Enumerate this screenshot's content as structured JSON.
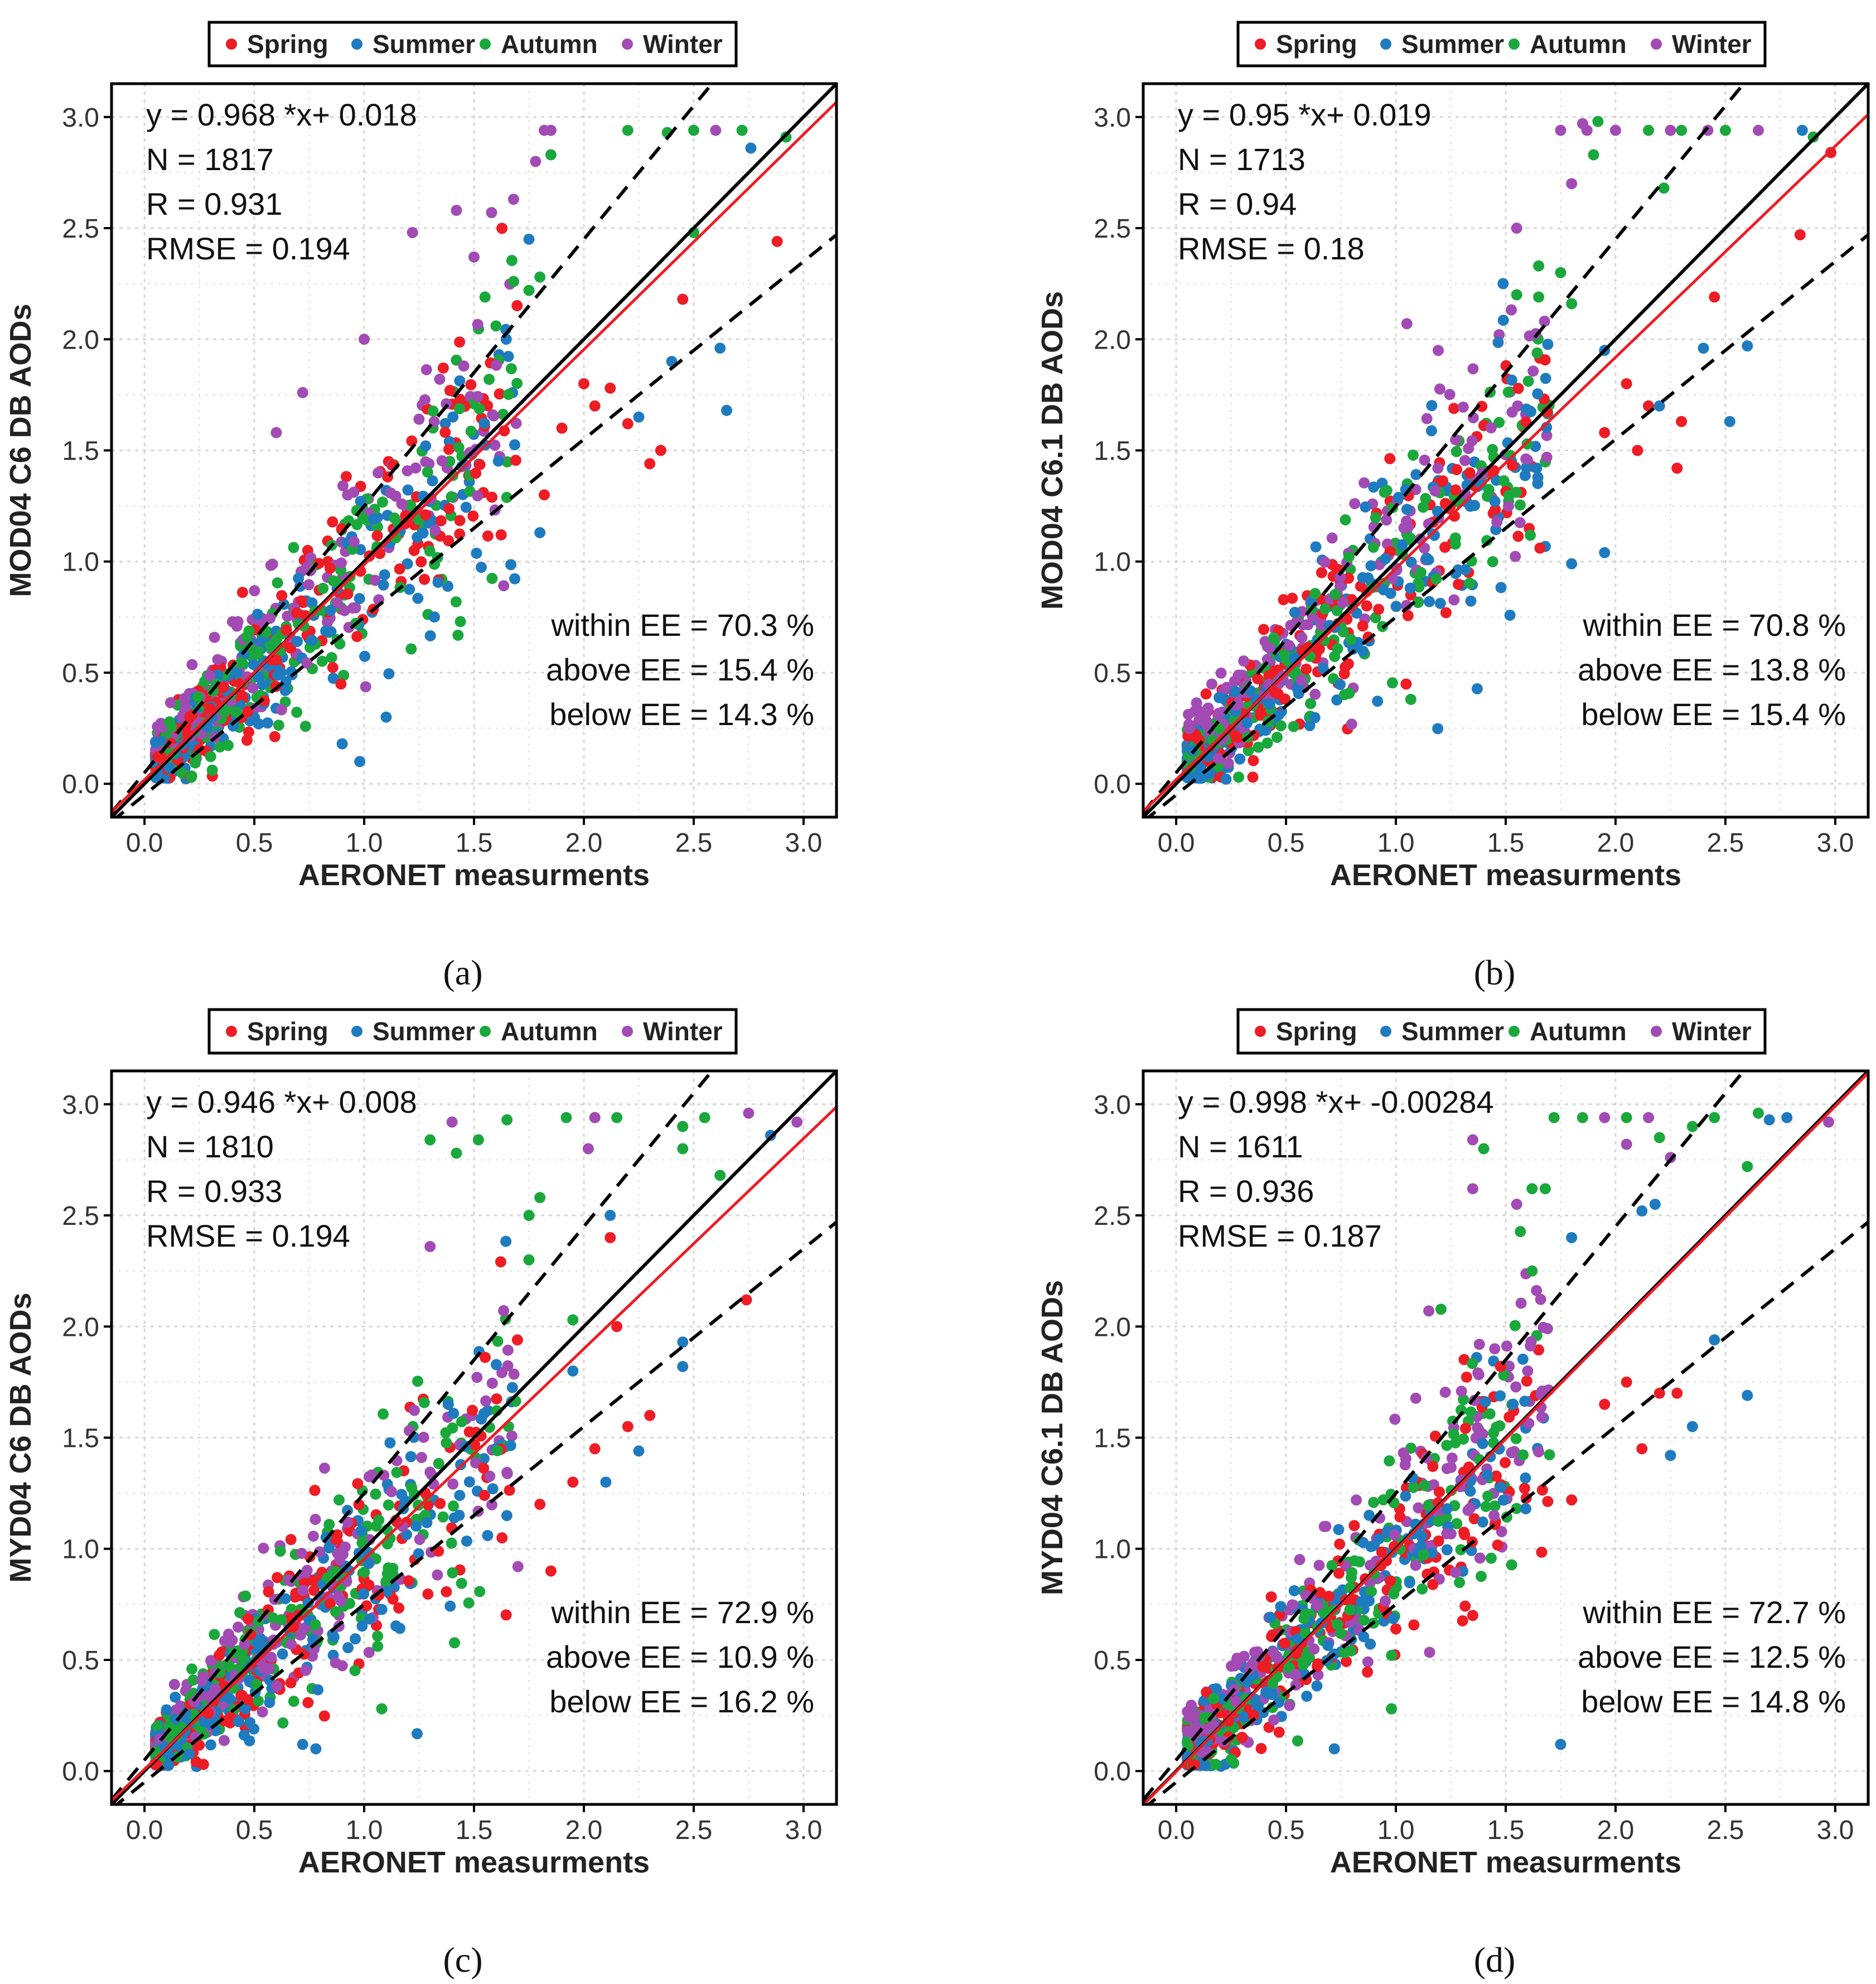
{
  "colors": {
    "spring": "#ee1c25",
    "summer": "#1f7bbf",
    "autumn": "#1aa83c",
    "winter": "#a24bb4",
    "one_to_one": "#000000",
    "fit_line": "#ee1c25",
    "ee_lines": "#000000",
    "grid": "#d6d6d6",
    "panel_border": "#000000"
  },
  "legend": {
    "items": [
      {
        "key": "spring",
        "label": "Spring"
      },
      {
        "key": "summer",
        "label": "Summer"
      },
      {
        "key": "autumn",
        "label": "Autumn"
      },
      {
        "key": "winter",
        "label": "Winter"
      }
    ]
  },
  "chart_data": [
    {
      "type": "scatter",
      "panel_label": "(a)",
      "panel_letter": "a",
      "ylabel": "MOD04 C6 DB AODs",
      "xlabel": "AERONET measurments",
      "xlim": [
        -0.15,
        3.15
      ],
      "ylim": [
        -0.15,
        3.15
      ],
      "xticks": [
        "0.0",
        "0.5",
        "1.0",
        "1.5",
        "2.0",
        "2.5",
        "3.0"
      ],
      "yticks": [
        "0.0",
        "0.5",
        "1.0",
        "1.5",
        "2.0",
        "2.5",
        "3.0"
      ],
      "fit": {
        "slope": 0.968,
        "intercept": 0.018
      },
      "ee": {
        "abs": 0.05,
        "rel": 0.2
      },
      "stats": [
        "y =  0.968 *x+ 0.018",
        "N = 1817",
        "R = 0.931",
        "RMSE = 0.194"
      ],
      "ee_stats": [
        "within EE = 70.3 %",
        "above EE = 15.4 %",
        "below EE = 14.3 %"
      ],
      "seed": 11,
      "points": {
        "spring": [
          [
            2.45,
            2.18
          ],
          [
            2.88,
            2.44
          ],
          [
            2.2,
            1.62
          ],
          [
            2.35,
            1.5
          ],
          [
            2.0,
            1.8
          ],
          [
            2.12,
            1.78
          ],
          [
            1.82,
            1.3
          ],
          [
            2.3,
            1.44
          ],
          [
            2.05,
            1.7
          ],
          [
            1.9,
            1.6
          ]
        ],
        "summer": [
          [
            2.62,
            1.96
          ],
          [
            2.65,
            1.68
          ],
          [
            2.76,
            2.86
          ],
          [
            2.4,
            1.9
          ],
          [
            2.25,
            1.65
          ],
          [
            1.8,
            1.13
          ],
          [
            1.75,
            2.45
          ],
          [
            1.1,
            0.3
          ],
          [
            0.98,
            0.1
          ],
          [
            0.9,
            0.18
          ]
        ],
        "autumn": [
          [
            2.2,
            2.94
          ],
          [
            2.38,
            2.93
          ],
          [
            2.5,
            2.94
          ],
          [
            2.72,
            2.94
          ],
          [
            2.92,
            2.91
          ],
          [
            2.5,
            2.48
          ],
          [
            1.85,
            2.83
          ],
          [
            1.8,
            2.28
          ],
          [
            1.75,
            2.22
          ],
          [
            1.68,
            2.26
          ],
          [
            1.55,
            2.19
          ],
          [
            1.6,
            2.06
          ]
        ],
        "winter": [
          [
            1.82,
            2.94
          ],
          [
            1.85,
            2.94
          ],
          [
            1.78,
            2.8
          ],
          [
            1.68,
            2.63
          ],
          [
            1.42,
            2.58
          ],
          [
            1.58,
            2.57
          ],
          [
            1.22,
            2.48
          ],
          [
            1.5,
            2.37
          ],
          [
            1.0,
            2.0
          ],
          [
            0.72,
            1.76
          ],
          [
            0.6,
            1.58
          ],
          [
            2.6,
            2.94
          ]
        ]
      }
    },
    {
      "type": "scatter",
      "panel_label": "(b)",
      "panel_letter": "b",
      "ylabel": "MOD04 C6.1 DB AODs",
      "xlabel": "AERONET measurments",
      "xlim": [
        -0.15,
        3.15
      ],
      "ylim": [
        -0.15,
        3.15
      ],
      "xticks": [
        "0.0",
        "0.5",
        "1.0",
        "1.5",
        "2.0",
        "2.5",
        "3.0"
      ],
      "yticks": [
        "0.0",
        "0.5",
        "1.0",
        "1.5",
        "2.0",
        "2.5",
        "3.0"
      ],
      "fit": {
        "slope": 0.95,
        "intercept": 0.019
      },
      "ee": {
        "abs": 0.05,
        "rel": 0.2
      },
      "stats": [
        "y =  0.95 *x+ 0.019",
        "N = 1713",
        "R = 0.94",
        "RMSE = 0.18"
      ],
      "ee_stats": [
        "within EE = 70.8 %",
        "above EE = 13.8 %",
        "below EE = 15.4 %"
      ],
      "seed": 23,
      "points": {
        "spring": [
          [
            2.98,
            2.84
          ],
          [
            2.84,
            2.47
          ],
          [
            2.45,
            2.19
          ],
          [
            2.3,
            1.63
          ],
          [
            2.28,
            1.42
          ],
          [
            2.15,
            1.7
          ],
          [
            2.05,
            1.8
          ],
          [
            1.95,
            1.58
          ],
          [
            2.1,
            1.5
          ]
        ],
        "summer": [
          [
            2.6,
            1.97
          ],
          [
            2.52,
            1.63
          ],
          [
            2.85,
            2.94
          ],
          [
            2.4,
            1.96
          ],
          [
            1.95,
            1.04
          ],
          [
            1.8,
            0.99
          ],
          [
            2.2,
            1.7
          ],
          [
            1.95,
            1.95
          ]
        ],
        "autumn": [
          [
            1.92,
            2.98
          ],
          [
            1.9,
            2.83
          ],
          [
            2.15,
            2.94
          ],
          [
            2.3,
            2.94
          ],
          [
            2.5,
            2.94
          ],
          [
            2.9,
            2.91
          ],
          [
            2.22,
            2.68
          ],
          [
            1.65,
            2.33
          ],
          [
            1.75,
            2.3
          ],
          [
            1.55,
            2.2
          ],
          [
            1.65,
            2.19
          ],
          [
            1.8,
            2.16
          ]
        ],
        "winter": [
          [
            1.75,
            2.94
          ],
          [
            1.85,
            2.97
          ],
          [
            2.0,
            2.94
          ],
          [
            2.65,
            2.94
          ],
          [
            1.8,
            2.7
          ],
          [
            1.55,
            2.5
          ],
          [
            1.05,
            2.07
          ],
          [
            1.87,
            2.94
          ],
          [
            2.25,
            2.94
          ],
          [
            2.42,
            2.94
          ]
        ]
      }
    },
    {
      "type": "scatter",
      "panel_label": "(c)",
      "panel_letter": "c",
      "ylabel": "MYD04 C6 DB AODs",
      "xlabel": "AERONET measurments",
      "xlim": [
        -0.15,
        3.15
      ],
      "ylim": [
        -0.15,
        3.15
      ],
      "xticks": [
        "0.0",
        "0.5",
        "1.0",
        "1.5",
        "2.0",
        "2.5",
        "3.0"
      ],
      "yticks": [
        "0.0",
        "0.5",
        "1.0",
        "1.5",
        "2.0",
        "2.5",
        "3.0"
      ],
      "fit": {
        "slope": 0.946,
        "intercept": 0.008
      },
      "ee": {
        "abs": 0.05,
        "rel": 0.2
      },
      "stats": [
        "y =  0.946 *x+ 0.008",
        "N = 1810",
        "R = 0.933",
        "RMSE = 0.194"
      ],
      "ee_stats": [
        "within EE = 72.9 %",
        "above EE = 10.9 %",
        "below EE = 16.2 %"
      ],
      "seed": 37,
      "points": {
        "spring": [
          [
            2.74,
            2.12
          ],
          [
            2.15,
            2.0
          ],
          [
            2.12,
            2.4
          ],
          [
            2.3,
            1.6
          ],
          [
            2.05,
            1.45
          ],
          [
            2.2,
            1.55
          ],
          [
            1.85,
            0.9
          ],
          [
            1.8,
            1.2
          ],
          [
            1.95,
            1.3
          ]
        ],
        "summer": [
          [
            2.85,
            2.86
          ],
          [
            2.45,
            1.93
          ],
          [
            2.45,
            1.82
          ],
          [
            2.25,
            1.44
          ],
          [
            2.1,
            1.3
          ],
          [
            2.12,
            2.5
          ],
          [
            1.95,
            1.8
          ],
          [
            0.78,
            0.1
          ],
          [
            0.72,
            0.12
          ]
        ],
        "autumn": [
          [
            1.3,
            2.84
          ],
          [
            1.42,
            2.78
          ],
          [
            1.52,
            2.84
          ],
          [
            1.65,
            2.93
          ],
          [
            1.92,
            2.94
          ],
          [
            2.05,
            2.94
          ],
          [
            2.15,
            2.94
          ],
          [
            2.45,
            2.9
          ],
          [
            2.55,
            2.94
          ],
          [
            2.62,
            2.68
          ],
          [
            2.45,
            2.8
          ],
          [
            1.75,
            2.5
          ],
          [
            1.8,
            2.58
          ],
          [
            1.75,
            2.3
          ],
          [
            1.95,
            2.03
          ],
          [
            1.08,
            0.28
          ]
        ],
        "winter": [
          [
            1.3,
            2.36
          ],
          [
            2.02,
            2.8
          ],
          [
            2.05,
            2.94
          ],
          [
            2.75,
            2.96
          ],
          [
            2.97,
            2.92
          ],
          [
            1.4,
            2.92
          ],
          [
            1.7,
            0.92
          ]
        ]
      }
    },
    {
      "type": "scatter",
      "panel_label": "(d)",
      "panel_letter": "d",
      "ylabel": "MYD04 C6.1 DB AODs",
      "xlabel": "AERONET measurments",
      "xlim": [
        -0.15,
        3.15
      ],
      "ylim": [
        -0.15,
        3.15
      ],
      "xticks": [
        "0.0",
        "0.5",
        "1.0",
        "1.5",
        "2.0",
        "2.5",
        "3.0"
      ],
      "yticks": [
        "0.0",
        "0.5",
        "1.0",
        "1.5",
        "2.0",
        "2.5",
        "3.0"
      ],
      "fit": {
        "slope": 0.998,
        "intercept": -0.00284
      },
      "ee": {
        "abs": 0.05,
        "rel": 0.2
      },
      "stats": [
        "y =  0.998 *x+ -0.00284",
        "N = 1611",
        "R = 0.936",
        "RMSE = 0.187"
      ],
      "ee_stats": [
        "within EE = 72.7 %",
        "above EE = 12.5 %",
        "below EE = 14.8 %"
      ],
      "seed": 53,
      "points": {
        "spring": [
          [
            2.12,
            1.45
          ],
          [
            2.2,
            1.7
          ],
          [
            2.28,
            1.7
          ],
          [
            1.95,
            1.65
          ],
          [
            1.8,
            1.22
          ],
          [
            1.35,
            0.7
          ],
          [
            2.05,
            1.75
          ]
        ],
        "summer": [
          [
            2.6,
            1.69
          ],
          [
            2.45,
            1.94
          ],
          [
            2.35,
            1.55
          ],
          [
            2.25,
            1.42
          ],
          [
            2.78,
            2.94
          ],
          [
            2.7,
            2.93
          ],
          [
            2.12,
            2.52
          ],
          [
            2.18,
            2.55
          ],
          [
            1.8,
            2.4
          ],
          [
            1.75,
            0.12
          ],
          [
            0.72,
            0.1
          ]
        ],
        "autumn": [
          [
            1.62,
            2.62
          ],
          [
            1.68,
            2.62
          ],
          [
            1.4,
            2.8
          ],
          [
            1.72,
            2.94
          ],
          [
            1.85,
            2.94
          ],
          [
            2.05,
            2.94
          ],
          [
            2.45,
            2.94
          ],
          [
            2.35,
            2.9
          ],
          [
            2.6,
            2.72
          ],
          [
            2.65,
            2.96
          ],
          [
            2.2,
            2.85
          ],
          [
            1.62,
            2.25
          ],
          [
            0.98,
            0.28
          ]
        ],
        "winter": [
          [
            1.35,
            2.62
          ],
          [
            1.35,
            2.84
          ],
          [
            1.55,
            2.55
          ],
          [
            1.95,
            2.94
          ],
          [
            2.15,
            2.94
          ],
          [
            2.25,
            2.76
          ],
          [
            2.05,
            2.82
          ],
          [
            2.97,
            2.92
          ],
          [
            1.15,
            2.07
          ],
          [
            1.38,
            1.92
          ],
          [
            1.45,
            1.9
          ],
          [
            1.6,
            1.8
          ]
        ]
      }
    }
  ]
}
